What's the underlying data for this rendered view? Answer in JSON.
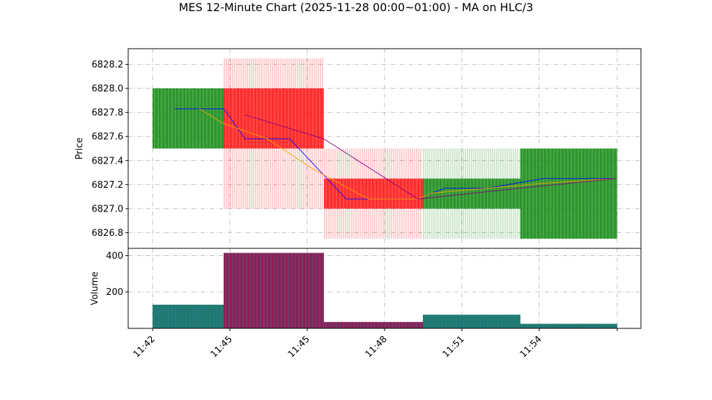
{
  "chart_data": [
    {
      "type": "candlestick",
      "title": "MES 12-Minute Chart (2025-11-28 00:00~01:00) - MA on HLC/3",
      "ylabel": "Price",
      "ylim": [
        6826.67,
        6828.33
      ],
      "yticks": [
        "6826.8",
        "6827.0",
        "6827.2",
        "6827.4",
        "6827.6",
        "6827.8",
        "6828.0",
        "6828.2"
      ],
      "xticks": [
        "11:42",
        "11:45",
        "11:45",
        "11:48",
        "11:51",
        "11:54",
        ""
      ],
      "grid": true,
      "colors": {
        "up": "#008000",
        "down": "#ff0000",
        "ma_short": "#0000ff",
        "ma_mid": "#ffa500",
        "ma_long": "#800080",
        "volume_up": "#1f7a6b",
        "volume_down": "#8b2252"
      },
      "candles": [
        {
          "open": 6827.5,
          "high": 6828.0,
          "low": 6827.5,
          "close": 6828.0,
          "direction": "up"
        },
        {
          "open": 6828.0,
          "high": 6828.25,
          "low": 6827.0,
          "close": 6827.5,
          "direction": "down"
        },
        {
          "open": 6827.25,
          "high": 6827.5,
          "low": 6826.75,
          "close": 6827.0,
          "direction": "down"
        },
        {
          "open": 6827.0,
          "high": 6827.5,
          "low": 6826.75,
          "close": 6827.25,
          "direction": "up"
        },
        {
          "open": 6826.75,
          "high": 6827.5,
          "low": 6826.75,
          "close": 6827.5,
          "direction": "up"
        }
      ],
      "ma_series": [
        {
          "color": "blue",
          "values": [
            6827.83,
            6827.83,
            6827.83,
            6827.58,
            6827.58,
            6827.58,
            6827.08,
            6827.08,
            6827.08,
            6827.17,
            6827.17,
            6827.17,
            6827.25,
            6827.25,
            6827.25
          ]
        },
        {
          "color": "orange",
          "values": [
            6827.83,
            6827.71,
            6827.58,
            6827.33,
            6827.08,
            6827.08,
            6827.13,
            6827.17,
            6827.21,
            6827.25
          ]
        },
        {
          "color": "purple",
          "values": [
            6827.78,
            6827.58,
            6827.08,
            6827.12,
            6827.17,
            6827.25
          ]
        }
      ]
    },
    {
      "type": "bar",
      "ylabel": "Volume",
      "ylim": [
        0,
        440
      ],
      "yticks": [
        "200",
        "400"
      ],
      "grid": true,
      "values": [
        130,
        415,
        35,
        75,
        25
      ],
      "directions": [
        "up",
        "down",
        "down",
        "up",
        "up"
      ]
    }
  ]
}
